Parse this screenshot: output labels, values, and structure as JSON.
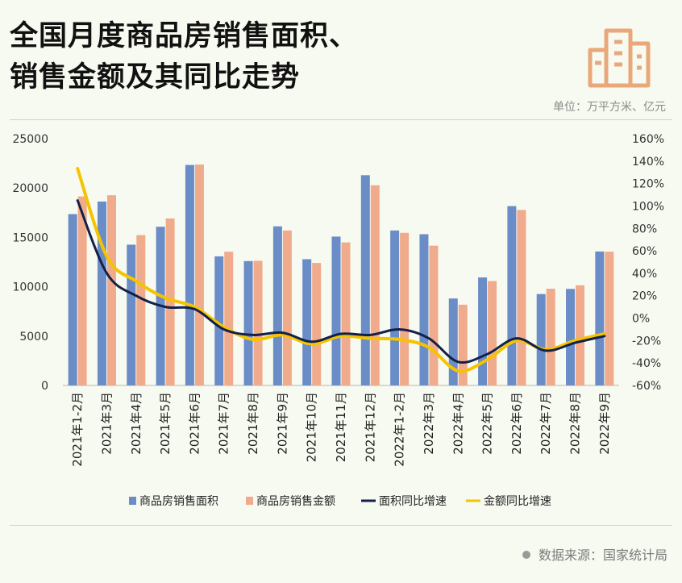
{
  "header": {
    "title_line1": "全国月度商品房销售面积、",
    "title_line2": "销售金额及其同比走势",
    "unit": "单位：万平方米、亿元",
    "logo_icon": "buildings-icon"
  },
  "footer": {
    "source": "数据来源：国家统计局"
  },
  "colors": {
    "area_bar": "#6a8cc7",
    "amount_bar": "#f0ab8c",
    "area_line": "#13214a",
    "amount_line": "#f5c400",
    "background": "#f7faf0",
    "logo": "#e9a87a"
  },
  "chart_data": {
    "type": "bar",
    "categories": [
      "2021年1-2月",
      "2021年3月",
      "2021年4月",
      "2021年5月",
      "2021年6月",
      "2021年7月",
      "2021年8月",
      "2021年9月",
      "2021年10月",
      "2021年11月",
      "2021年12月",
      "2022年1-2月",
      "2022年3月",
      "2022年4月",
      "2022年5月",
      "2022年6月",
      "2022年7月",
      "2022年8月",
      "2022年9月"
    ],
    "left_axis": {
      "min": 0,
      "max": 25000,
      "ticks": [
        "0",
        "5000",
        "10000",
        "15000",
        "20000",
        "25000"
      ]
    },
    "right_axis": {
      "min": -60,
      "max": 160,
      "ticks": [
        "-60%",
        "-40%",
        "-20%",
        "0%",
        "20%",
        "40%",
        "60%",
        "80%",
        "100%",
        "120%",
        "140%",
        "160%"
      ]
    },
    "series": [
      {
        "name": "商品房销售面积",
        "kind": "bar",
        "axis": "left",
        "values": [
          17360,
          18630,
          14260,
          16080,
          22340,
          13080,
          12600,
          16120,
          12790,
          15080,
          21300,
          15700,
          15320,
          8810,
          10940,
          18170,
          9260,
          9780,
          13570
        ]
      },
      {
        "name": "商品房销售金额",
        "kind": "bar",
        "axis": "left",
        "values": [
          19150,
          19270,
          15230,
          16920,
          22380,
          13550,
          12630,
          15700,
          12410,
          14490,
          20280,
          15460,
          14160,
          8180,
          10580,
          17780,
          9800,
          10150,
          13550
        ]
      },
      {
        "name": "面积同比增速",
        "kind": "line",
        "axis": "right",
        "values": [
          104.9,
          40,
          20,
          10,
          8,
          -10,
          -15,
          -13,
          -21,
          -14,
          -15,
          -10,
          -18,
          -39,
          -32,
          -18,
          -29,
          -22,
          -16
        ]
      },
      {
        "name": "金额同比增速",
        "kind": "line",
        "axis": "right",
        "values": [
          133.4,
          55,
          33,
          18,
          10,
          -8,
          -19,
          -15,
          -23,
          -16,
          -18,
          -19,
          -26,
          -47,
          -37,
          -20,
          -28,
          -20,
          -14
        ]
      }
    ],
    "grid": false,
    "legend_position": "bottom"
  }
}
